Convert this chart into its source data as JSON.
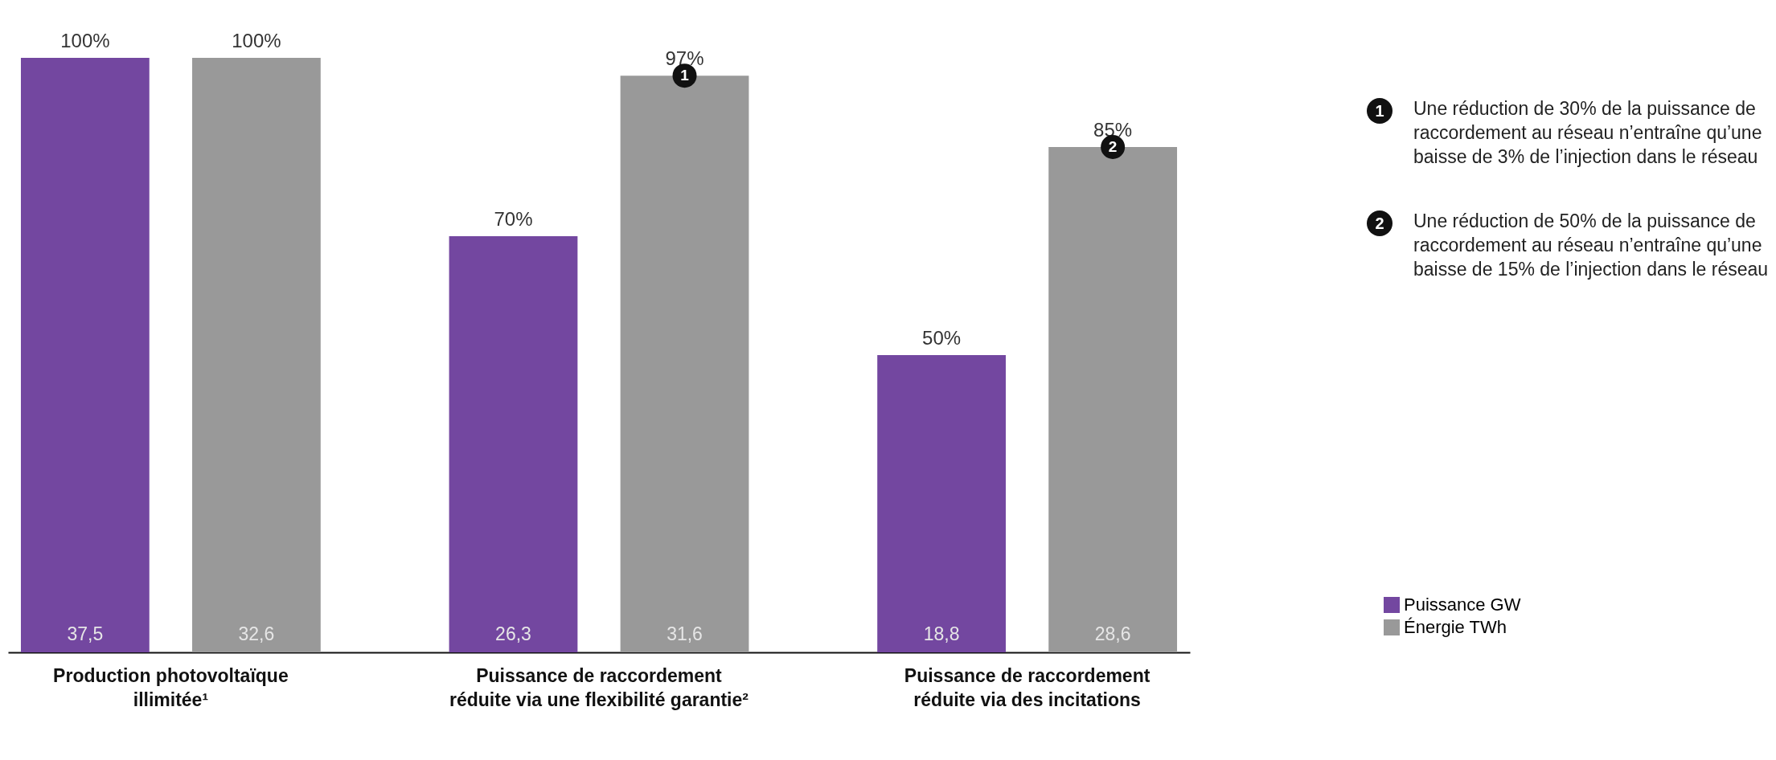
{
  "chart_data": {
    "type": "bar",
    "categories": [
      "Production photovoltaïque illimitée¹",
      "Puissance de raccordement réduite via une flexibilité garantie²",
      "Puissance de raccordement réduite via des incitations"
    ],
    "series": [
      {
        "name": "Puissance GW",
        "color": "#7347a0",
        "values": [
          100,
          70,
          50
        ],
        "value_labels": [
          "100%",
          "70%",
          "50%"
        ]
      },
      {
        "name": "Énergie TWh",
        "color": "#999999",
        "values": [
          100,
          97,
          85
        ],
        "value_labels": [
          "100%",
          "97%",
          "85%"
        ]
      }
    ],
    "annotations": [
      "37,5",
      "32,6",
      "26,3",
      "31,6",
      "18,8",
      "28,6",
      "1",
      "2",
      "Une réduction de 30% de la puissance de raccordement au réseau n’entraîne qu’une baisse de 3% de l’injection dans le réseau",
      "Une réduction de 50% de la puissance de raccordement au réseau n’entraîne qu’une baisse de 15% de l’injection dans le réseau"
    ],
    "legend": "bottom right",
    "grid": false
  }
}
